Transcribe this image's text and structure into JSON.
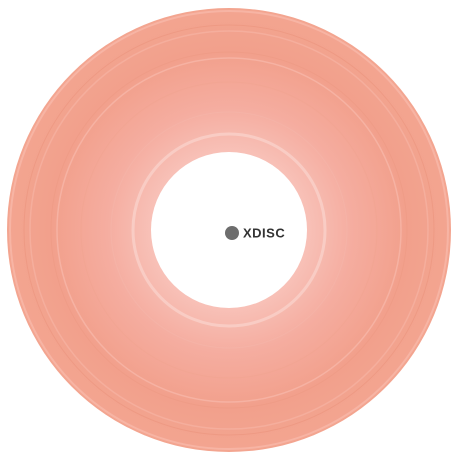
{
  "logo": {
    "text": "XDISC"
  }
}
